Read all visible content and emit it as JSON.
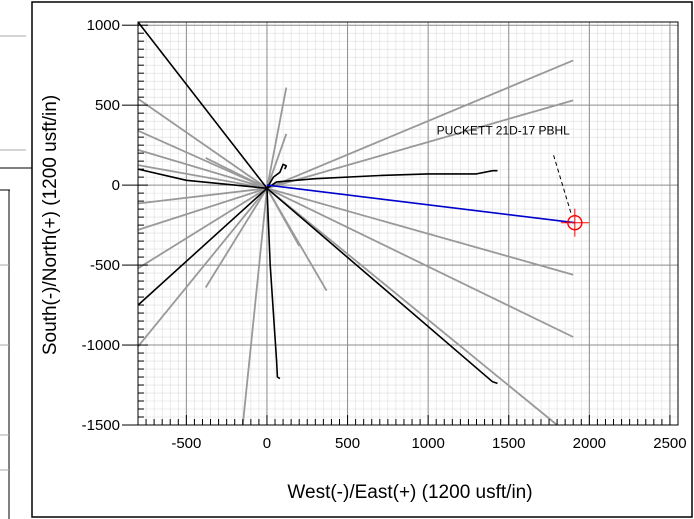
{
  "chart_data": {
    "type": "line",
    "xlabel": "West(-)/East(+) (1200 usft/in)",
    "ylabel": "South(-)/North(+) (1200 usft/in)",
    "xlim": [
      -800,
      2550
    ],
    "ylim": [
      -1500,
      1020
    ],
    "x_ticks": [
      -500,
      0,
      500,
      1000,
      1500,
      2000,
      2500
    ],
    "y_ticks": [
      1000,
      500,
      0,
      -500,
      -1000,
      -1500
    ],
    "grid": true,
    "colors": {
      "existing_gray": "#999999",
      "existing_black": "#000000",
      "plan": "#0000cc",
      "target": "#ff0000",
      "major_grid": "#8c8c8c",
      "minor_grid": "#dddddd"
    },
    "series": [
      {
        "style": "gray",
        "points": [
          [
            0,
            -20
          ],
          [
            1900,
            780
          ]
        ]
      },
      {
        "style": "gray",
        "points": [
          [
            0,
            -20
          ],
          [
            1900,
            530
          ]
        ]
      },
      {
        "style": "gray",
        "points": [
          [
            0,
            -20
          ],
          [
            1900,
            -560
          ]
        ]
      },
      {
        "style": "gray",
        "points": [
          [
            0,
            -20
          ],
          [
            1900,
            -950
          ]
        ]
      },
      {
        "style": "gray",
        "points": [
          [
            0,
            -20
          ],
          [
            1800,
            -1500
          ]
        ]
      },
      {
        "style": "gray",
        "points": [
          [
            0,
            -20
          ],
          [
            -800,
            540
          ]
        ]
      },
      {
        "style": "gray",
        "points": [
          [
            0,
            -20
          ],
          [
            -800,
            340
          ]
        ]
      },
      {
        "style": "gray",
        "points": [
          [
            0,
            -20
          ],
          [
            -800,
            220
          ]
        ]
      },
      {
        "style": "gray",
        "points": [
          [
            0,
            -20
          ],
          [
            -800,
            125
          ]
        ]
      },
      {
        "style": "gray",
        "points": [
          [
            0,
            -20
          ],
          [
            -800,
            -115
          ]
        ]
      },
      {
        "style": "gray",
        "points": [
          [
            0,
            -20
          ],
          [
            -800,
            -280
          ]
        ]
      },
      {
        "style": "gray",
        "points": [
          [
            0,
            -20
          ],
          [
            -800,
            -520
          ]
        ]
      },
      {
        "style": "gray",
        "points": [
          [
            0,
            -20
          ],
          [
            -800,
            -1010
          ]
        ]
      },
      {
        "style": "gray",
        "points": [
          [
            0,
            -20
          ],
          [
            -380,
            -640
          ]
        ]
      },
      {
        "style": "gray",
        "points": [
          [
            0,
            -20
          ],
          [
            -150,
            -1500
          ]
        ]
      },
      {
        "style": "gray",
        "points": [
          [
            0,
            -20
          ],
          [
            370,
            -660
          ]
        ]
      },
      {
        "style": "gray",
        "points": [
          [
            0,
            -20
          ],
          [
            200,
            -380
          ]
        ]
      },
      {
        "style": "gray",
        "points": [
          [
            0,
            -20
          ],
          [
            120,
            610
          ]
        ]
      },
      {
        "style": "gray",
        "points": [
          [
            0,
            -20
          ],
          [
            120,
            320
          ]
        ]
      },
      {
        "style": "gray",
        "points": [
          [
            0,
            -20
          ],
          [
            -380,
            170
          ]
        ]
      },
      {
        "style": "black",
        "points": [
          [
            0,
            -20
          ],
          [
            -800,
            1020
          ]
        ]
      },
      {
        "style": "black",
        "points": [
          [
            0,
            -20
          ],
          [
            -800,
            -750
          ]
        ]
      },
      {
        "style": "black",
        "points": [
          [
            0,
            -20
          ],
          [
            -500,
            30
          ],
          [
            -800,
            100
          ]
        ]
      },
      {
        "style": "black",
        "points": [
          [
            0,
            -20
          ],
          [
            1400,
            -1230
          ],
          [
            1430,
            -1240
          ]
        ]
      },
      {
        "style": "black",
        "points": [
          [
            0,
            -20
          ],
          [
            60,
            20
          ],
          [
            300,
            40
          ],
          [
            700,
            60
          ],
          [
            1000,
            70
          ],
          [
            1300,
            70
          ],
          [
            1400,
            90
          ],
          [
            1430,
            90
          ]
        ]
      },
      {
        "style": "black",
        "points": [
          [
            0,
            -20
          ],
          [
            40,
            50
          ],
          [
            80,
            80
          ],
          [
            100,
            130
          ],
          [
            120,
            120
          ],
          [
            110,
            100
          ]
        ]
      },
      {
        "style": "black",
        "points": [
          [
            0,
            -20
          ],
          [
            20,
            -500
          ],
          [
            60,
            -1100
          ],
          [
            65,
            -1200
          ],
          [
            80,
            -1210
          ]
        ]
      },
      {
        "style": "plan",
        "points": [
          [
            0,
            0
          ],
          [
            1910,
            -235
          ]
        ]
      }
    ],
    "target": {
      "label": "PUCKETT 21D-17 PBHL",
      "x": 1910,
      "y": -235
    }
  }
}
